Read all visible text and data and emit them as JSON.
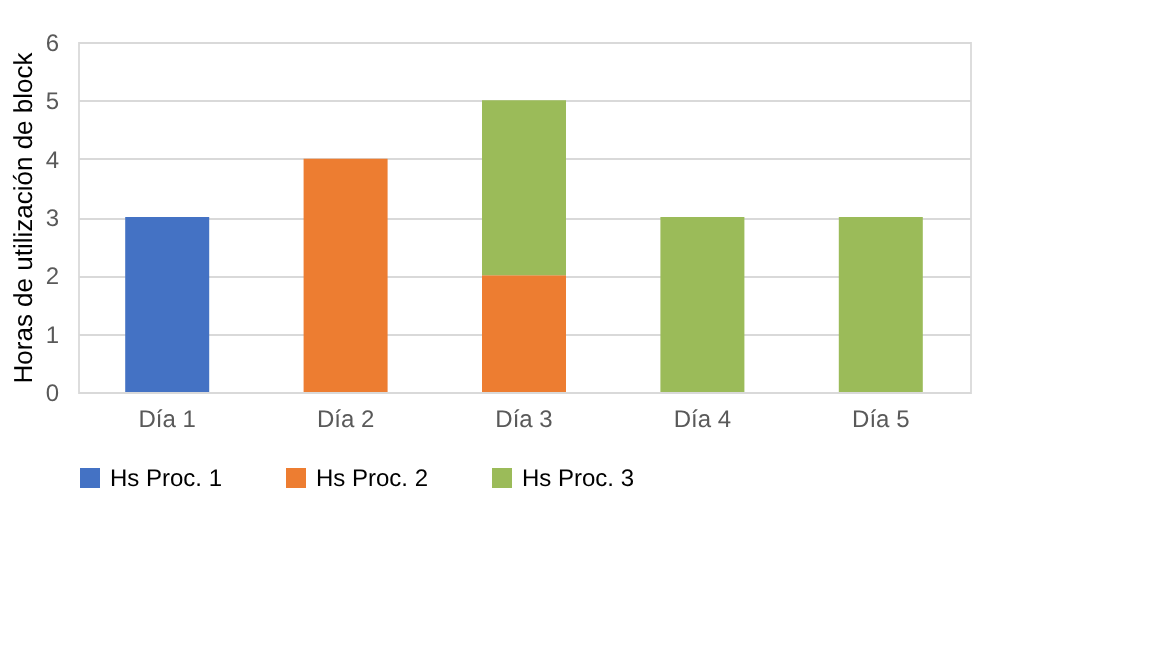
{
  "chart_data": {
    "type": "bar",
    "stacked": true,
    "ylabel": "Horas de utilización de block",
    "categories": [
      "Día 1",
      "Día 2",
      "Día 3",
      "Día 4",
      "Día 5"
    ],
    "series": [
      {
        "name": "Hs Proc. 1",
        "color": "#4472c4",
        "values": [
          3,
          null,
          null,
          null,
          null
        ]
      },
      {
        "name": "Hs Proc. 2",
        "color": "#ed7d31",
        "values": [
          null,
          4,
          2,
          null,
          null
        ]
      },
      {
        "name": "Hs Proc. 3",
        "color": "#9bbb59",
        "values": [
          null,
          null,
          3,
          3,
          3
        ]
      }
    ],
    "ylim": [
      0,
      6
    ],
    "yticks": [
      0,
      1,
      2,
      3,
      4,
      5,
      6
    ],
    "grid": "y",
    "legend": "bottom"
  }
}
